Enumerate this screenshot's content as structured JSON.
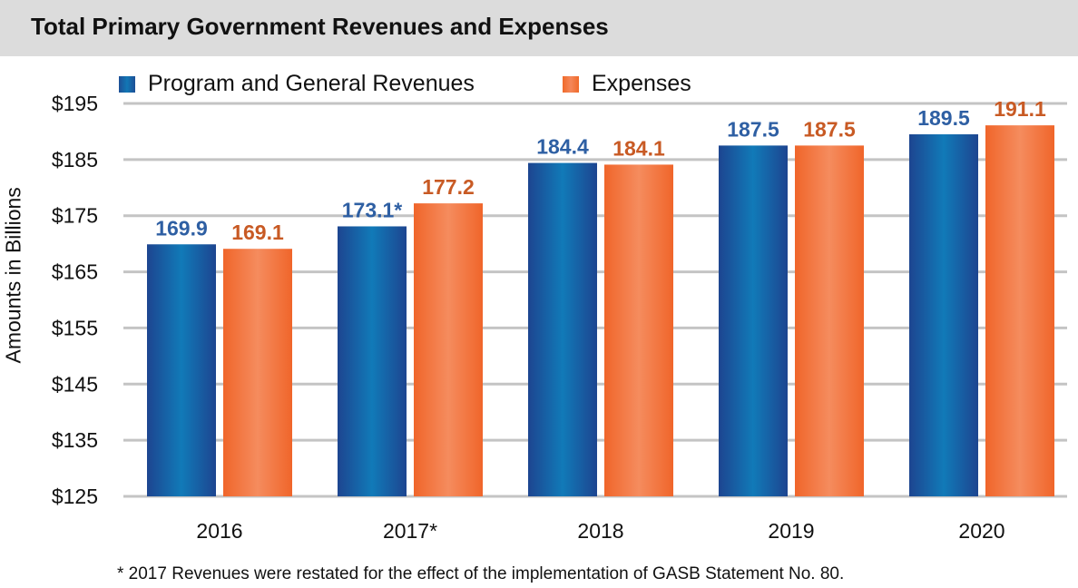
{
  "chart_data": {
    "type": "bar",
    "title": "Total Primary Government Revenues and Expenses",
    "ylabel": "Amounts in Billions",
    "xlabel": "",
    "categories": [
      "2016",
      "2017*",
      "2018",
      "2019",
      "2020"
    ],
    "series": [
      {
        "name": "Program and General Revenues",
        "values": [
          169.9,
          173.1,
          184.4,
          187.5,
          189.5
        ],
        "labels": [
          "169.9",
          "173.1*",
          "184.4",
          "187.5",
          "189.5"
        ],
        "color": "#1f5fa8"
      },
      {
        "name": "Expenses",
        "values": [
          169.1,
          177.2,
          184.1,
          187.5,
          191.1
        ],
        "labels": [
          "169.1",
          "177.2",
          "184.1",
          "187.5",
          "191.1"
        ],
        "color": "#f06a2a"
      }
    ],
    "ylim": [
      125,
      195
    ],
    "yticks": [
      "$125",
      "$135",
      "$145",
      "$155",
      "$165",
      "$175",
      "$185",
      "$195"
    ],
    "grid": true,
    "legend": "top",
    "footnote": "* 2017 Revenues were restated for the effect of the implementation of GASB Statement No. 80."
  }
}
